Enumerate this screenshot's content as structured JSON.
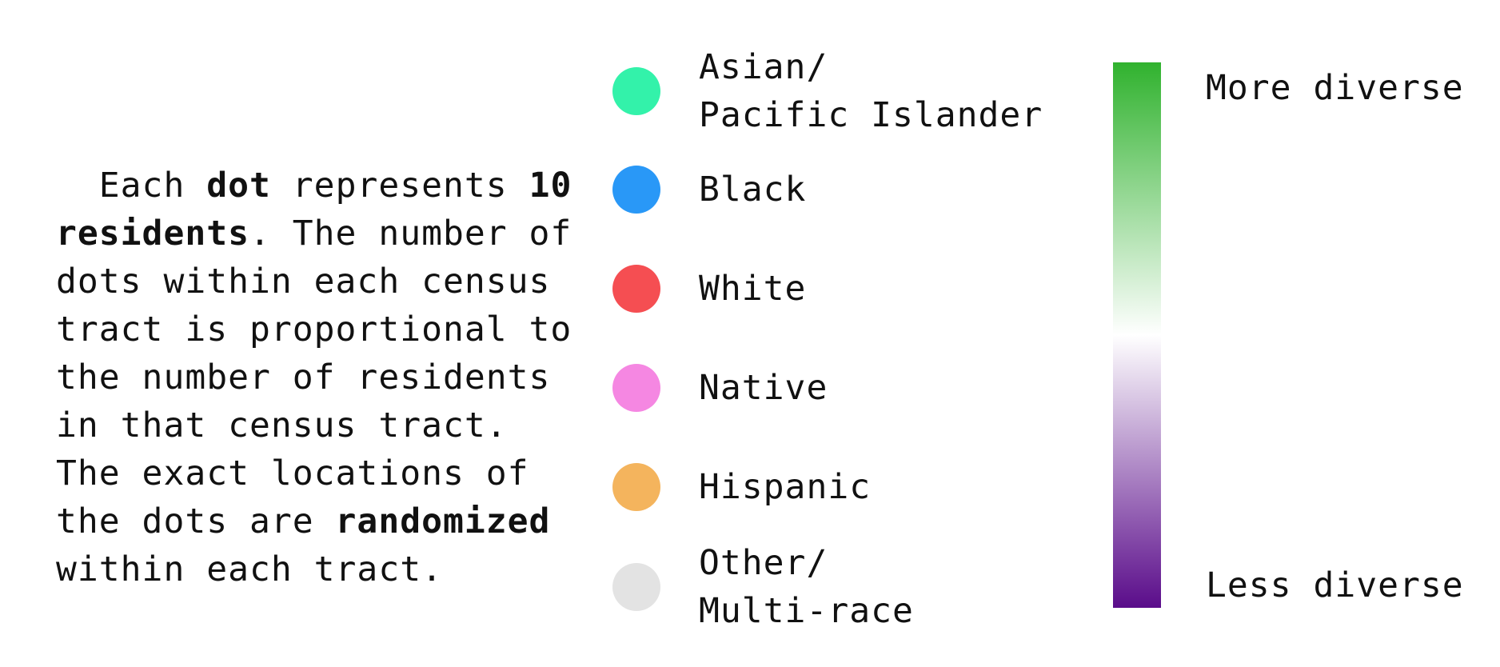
{
  "description": {
    "parts": [
      {
        "text": "Each ",
        "bold": false
      },
      {
        "text": "dot",
        "bold": true
      },
      {
        "text": " represents ",
        "bold": false
      },
      {
        "text": "10 residents",
        "bold": true
      },
      {
        "text": ". The number of dots within each census tract is proportional to the number of residents in that census tract. The exact locations of the dots are ",
        "bold": false
      },
      {
        "text": "randomized",
        "bold": true
      },
      {
        "text": " within each tract.",
        "bold": false
      }
    ]
  },
  "legend": {
    "items": [
      {
        "label": "Asian/\nPacific Islander",
        "color": "#33f2aa"
      },
      {
        "label": "Black",
        "color": "#2998f7"
      },
      {
        "label": "White",
        "color": "#f54e52"
      },
      {
        "label": "Native",
        "color": "#f587e2"
      },
      {
        "label": "Hispanic",
        "color": "#f4b45d"
      },
      {
        "label": "Other/\nMulti-race",
        "color": "#e3e3e3"
      }
    ]
  },
  "diversity_scale": {
    "top_label": "More diverse",
    "bottom_label": "Less diverse",
    "top_color": "#30b22e",
    "middle_color": "#ffffff",
    "bottom_color": "#5a0c8a"
  }
}
